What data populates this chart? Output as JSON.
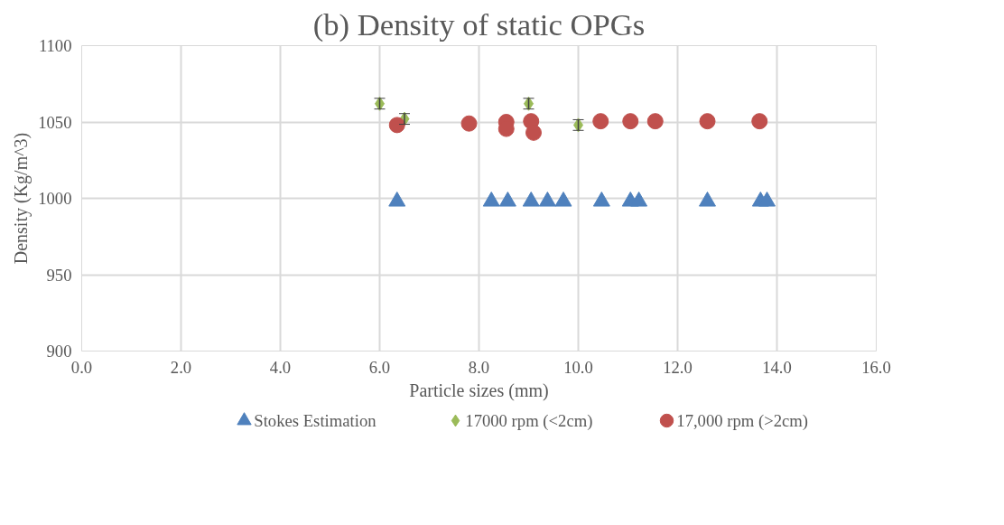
{
  "chart_data": {
    "type": "scatter",
    "title": "(b) Density of static OPGs",
    "xlabel": "Particle sizes (mm)",
    "ylabel": "Density (Kg/m^3)",
    "xlim": [
      0,
      16
    ],
    "xticks": [
      {
        "value": 0,
        "label": "0.0"
      },
      {
        "value": 2,
        "label": "2.0"
      },
      {
        "value": 4,
        "label": "4.0"
      },
      {
        "value": 6,
        "label": "6.0"
      },
      {
        "value": 8,
        "label": "8.0"
      },
      {
        "value": 10,
        "label": "10.0"
      },
      {
        "value": 12,
        "label": "12.0"
      },
      {
        "value": 14,
        "label": "14.0"
      },
      {
        "value": 16,
        "label": "16.0"
      }
    ],
    "ylim": [
      900,
      1100
    ],
    "yticks": [
      900,
      950,
      1000,
      1050,
      1100
    ],
    "grid": true,
    "legend": "bottom",
    "series": [
      {
        "name": "Stokes Estimation",
        "color": "#4f81bd",
        "marker": "triangle",
        "x": [
          6.35,
          8.25,
          8.58,
          9.05,
          9.38,
          9.7,
          10.47,
          11.05,
          11.22,
          12.6,
          13.67,
          13.8
        ],
        "values": [
          998,
          998,
          998,
          998,
          998,
          998,
          998,
          998,
          998,
          998,
          998,
          998
        ]
      },
      {
        "name": "17000 rpm (<2cm)",
        "color": "#9bbb59",
        "marker": "diamond",
        "x": [
          6.0,
          6.5,
          9.0,
          10.0
        ],
        "values": [
          1062,
          1052,
          1062,
          1048
        ],
        "errors": [
          3.5,
          3.5,
          3.5,
          3.5
        ]
      },
      {
        "name": "17,000 rpm (>2cm)",
        "color": "#c0504d",
        "marker": "circle",
        "x": [
          6.35,
          7.8,
          8.55,
          8.55,
          9.05,
          9.1,
          10.45,
          11.05,
          11.55,
          12.6,
          13.65
        ],
        "values": [
          1048,
          1049,
          1050,
          1045.5,
          1050.5,
          1043,
          1050.5,
          1050.5,
          1050.5,
          1050.5,
          1050.5
        ]
      }
    ]
  }
}
